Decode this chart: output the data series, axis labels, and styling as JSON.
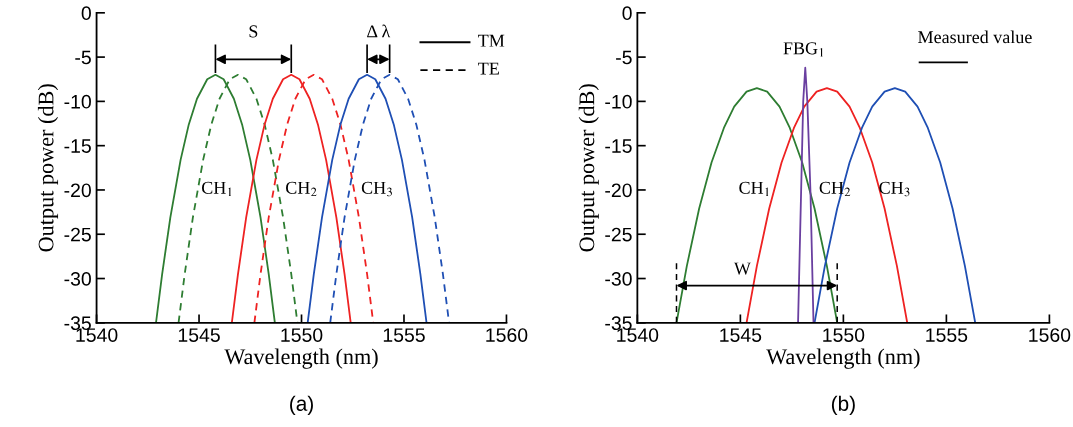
{
  "chart_data": [
    {
      "type": "line",
      "xlabel": "Wavelength (nm)",
      "ylabel": "Output power (dB)",
      "xlim": [
        1540,
        1560
      ],
      "ylim": [
        -35,
        0
      ],
      "xticks": [
        1540,
        1545,
        1550,
        1555,
        1560
      ],
      "yticks": [
        -35,
        -30,
        -25,
        -20,
        -15,
        -10,
        -5,
        0
      ],
      "grid": false,
      "series": [
        {
          "color": "#2e7d32",
          "line_style": "solid",
          "x": [
            1542.9,
            1543.2,
            1543.6,
            1544.1,
            1544.5,
            1544.9,
            1545.4,
            1545.8,
            1546.2,
            1546.7,
            1547.1,
            1547.5,
            1548.0,
            1548.4,
            1548.7
          ],
          "values": [
            -35,
            -29.5,
            -23.1,
            -16.6,
            -12.6,
            -9.7,
            -7.5,
            -7,
            -7.5,
            -9.7,
            -12.6,
            -16.6,
            -23.1,
            -29.5,
            -35
          ]
        },
        {
          "color": "#2e7d32",
          "line_style": "dashed",
          "x": [
            1544.0,
            1544.3,
            1544.7,
            1545.2,
            1545.6,
            1546.0,
            1546.5,
            1546.9,
            1547.3,
            1547.8,
            1548.2,
            1548.6,
            1549.1,
            1549.5,
            1549.8
          ],
          "values": [
            -35,
            -29.5,
            -23.1,
            -16.6,
            -12.6,
            -9.7,
            -7.5,
            -7,
            -7.5,
            -9.7,
            -12.6,
            -16.6,
            -23.1,
            -29.5,
            -35
          ]
        },
        {
          "color": "#ee2222",
          "line_style": "solid",
          "x": [
            1546.6,
            1546.9,
            1547.3,
            1547.8,
            1548.2,
            1548.6,
            1549.1,
            1549.5,
            1549.9,
            1550.4,
            1550.8,
            1551.2,
            1551.7,
            1552.1,
            1552.4
          ],
          "values": [
            -35,
            -29.5,
            -23.1,
            -16.6,
            -12.6,
            -9.7,
            -7.5,
            -7,
            -7.5,
            -9.7,
            -12.6,
            -16.6,
            -23.1,
            -29.5,
            -35
          ]
        },
        {
          "color": "#ee2222",
          "line_style": "dashed",
          "x": [
            1547.7,
            1548.0,
            1548.4,
            1548.9,
            1549.3,
            1549.7,
            1550.2,
            1550.6,
            1551.0,
            1551.5,
            1551.9,
            1552.3,
            1552.8,
            1553.2,
            1553.5
          ],
          "values": [
            -35,
            -29.5,
            -23.1,
            -16.6,
            -12.6,
            -9.7,
            -7.5,
            -7,
            -7.5,
            -9.7,
            -12.6,
            -16.6,
            -23.1,
            -29.5,
            -35
          ]
        },
        {
          "color": "#1f4fb4",
          "line_style": "solid",
          "x": [
            1550.3,
            1550.6,
            1551.0,
            1551.5,
            1551.9,
            1552.3,
            1552.8,
            1553.2,
            1553.6,
            1554.1,
            1554.5,
            1554.9,
            1555.4,
            1555.8,
            1556.1
          ],
          "values": [
            -35,
            -29.5,
            -23.1,
            -16.6,
            -12.6,
            -9.7,
            -7.5,
            -7,
            -7.5,
            -9.7,
            -12.6,
            -16.6,
            -23.1,
            -29.5,
            -35
          ]
        },
        {
          "color": "#1f4fb4",
          "line_style": "dashed",
          "x": [
            1551.4,
            1551.7,
            1552.1,
            1552.6,
            1553.0,
            1553.4,
            1553.9,
            1554.3,
            1554.7,
            1555.2,
            1555.6,
            1556.0,
            1556.5,
            1556.9,
            1557.2
          ],
          "values": [
            -35,
            -29.5,
            -23.1,
            -16.6,
            -12.6,
            -9.7,
            -7.5,
            -7,
            -7.5,
            -9.7,
            -12.6,
            -16.6,
            -23.1,
            -29.5,
            -35
          ]
        }
      ],
      "annotations": [
        "S",
        "Δ λ",
        "CH$_{1}$",
        "CH$_{2}$",
        "CH$_{3}$",
        "TM",
        "TE",
        "(a)"
      ]
    },
    {
      "type": "line",
      "xlabel": "Wavelength (nm)",
      "ylabel": "Output power (dB)",
      "xlim": [
        1540,
        1560
      ],
      "ylim": [
        -35,
        0
      ],
      "xticks": [
        1540,
        1545,
        1550,
        1555,
        1560
      ],
      "yticks": [
        -35,
        -30,
        -25,
        -20,
        -15,
        -10,
        -5,
        0
      ],
      "grid": false,
      "series": [
        {
          "color": "#2e7d32",
          "x": [
            1541.9,
            1542.4,
            1543.0,
            1543.6,
            1544.2,
            1544.7,
            1545.3,
            1545.8,
            1546.3,
            1546.9,
            1547.4,
            1548.0,
            1548.6,
            1549.2,
            1549.7
          ],
          "values": [
            -35,
            -28.6,
            -22.1,
            -16.9,
            -13.0,
            -10.6,
            -8.9,
            -8.5,
            -8.9,
            -10.6,
            -13.0,
            -16.9,
            -22.1,
            -28.6,
            -35
          ]
        },
        {
          "color": "#ee2222",
          "x": [
            1545.3,
            1545.8,
            1546.4,
            1547.0,
            1547.6,
            1548.1,
            1548.7,
            1549.2,
            1549.7,
            1550.3,
            1550.8,
            1551.4,
            1552.0,
            1552.6,
            1553.1
          ],
          "values": [
            -35,
            -28.6,
            -22.1,
            -16.9,
            -13.0,
            -10.6,
            -8.9,
            -8.5,
            -8.9,
            -10.6,
            -13.0,
            -16.9,
            -22.1,
            -28.6,
            -35
          ]
        },
        {
          "color": "#1f4fb4",
          "x": [
            1548.6,
            1549.1,
            1549.7,
            1550.3,
            1550.9,
            1551.4,
            1552.0,
            1552.5,
            1553.0,
            1553.6,
            1554.1,
            1554.7,
            1555.3,
            1555.9,
            1556.4
          ],
          "values": [
            -35,
            -28.6,
            -22.1,
            -16.9,
            -13.0,
            -10.6,
            -8.9,
            -8.5,
            -8.9,
            -10.6,
            -13.0,
            -16.9,
            -22.1,
            -28.6,
            -35
          ]
        },
        {
          "color": "#6a3fa0",
          "x": [
            1547.8,
            1547.95,
            1548.05,
            1548.15,
            1548.25,
            1548.4,
            1548.55
          ],
          "values": [
            -35,
            -20,
            -10,
            -6.2,
            -10,
            -20,
            -35
          ]
        }
      ],
      "annotations": [
        "W",
        "FBG$_{1}$",
        "CH$_{1}$",
        "CH$_{2}$",
        "CH$_{3}$",
        "Measured value",
        "(b)"
      ]
    }
  ]
}
